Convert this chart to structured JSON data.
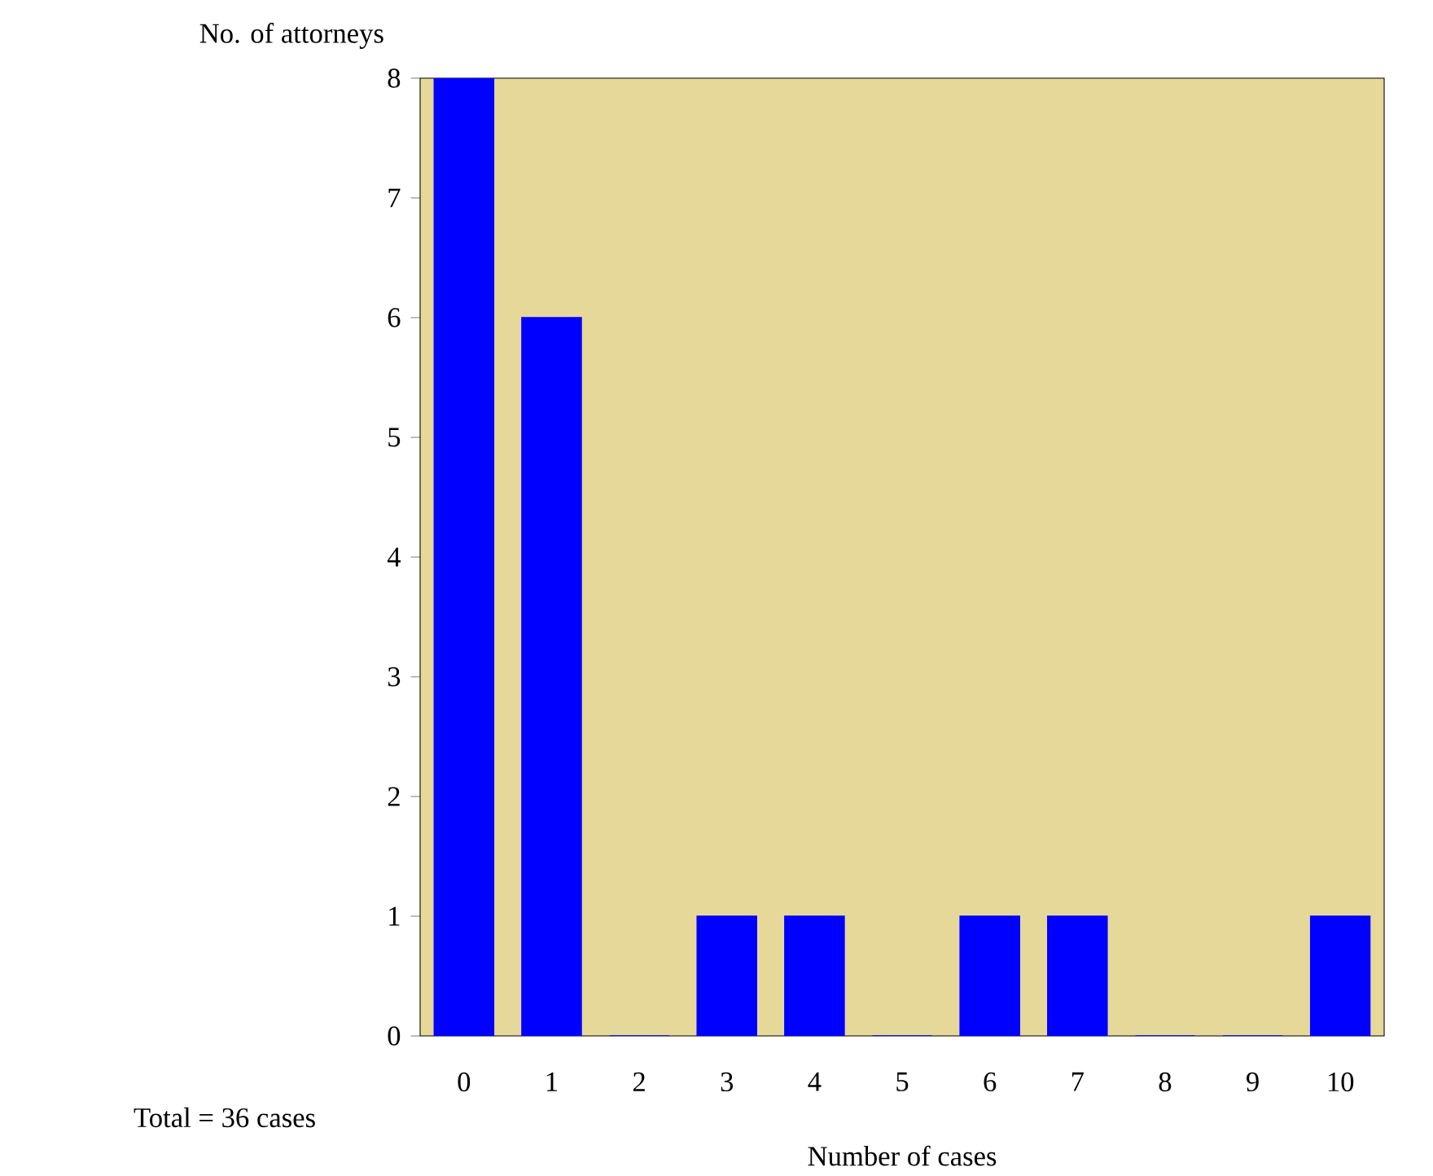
{
  "chart_data": {
    "type": "bar",
    "xlabel": "Number of cases",
    "ylabel": "No. of attorneys",
    "annotations": [
      "Total = 36 cases"
    ],
    "categories": [
      "0",
      "1",
      "2",
      "3",
      "4",
      "5",
      "6",
      "7",
      "8",
      "9",
      "10"
    ],
    "values": [
      8,
      6,
      0,
      1,
      1,
      0,
      1,
      1,
      0,
      0,
      1
    ],
    "color": "#0000ff",
    "ylim": [
      0,
      8
    ],
    "yticks": [
      0,
      1,
      2,
      3,
      4,
      5,
      6,
      7,
      8
    ]
  }
}
